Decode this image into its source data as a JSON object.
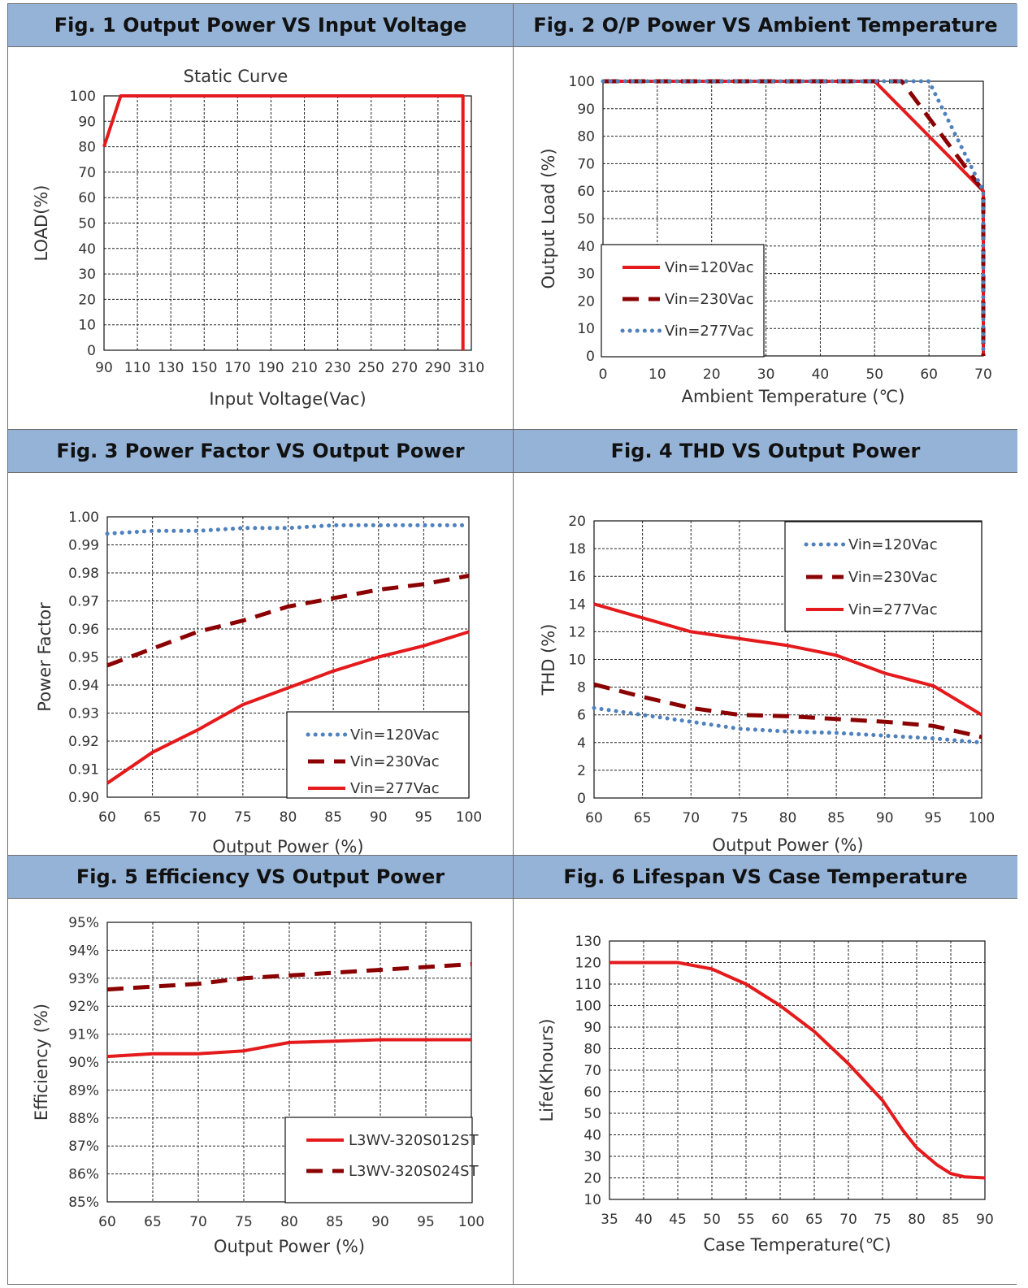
{
  "colors": {
    "header_bg": "#95b3d7",
    "red": "#e41a1c",
    "dark_red": "#8b0000",
    "blue": "#4f81bd"
  },
  "charts": [
    {
      "heading": "Fig. 1 Output Power VS Input Voltage",
      "chart_data": {
        "type": "line",
        "title": "Static Curve",
        "xlabel": "Input Voltage(Vac)",
        "ylabel": "LOAD(%)",
        "xlim": [
          90,
          310
        ],
        "ylim": [
          0,
          100
        ],
        "xticks": [
          90,
          110,
          130,
          150,
          170,
          190,
          210,
          230,
          250,
          270,
          290,
          310
        ],
        "yticks": [
          0,
          10,
          20,
          30,
          40,
          50,
          60,
          70,
          80,
          90,
          100
        ],
        "series": [
          {
            "color": "#e41a1c",
            "style": "solid",
            "points": [
              [
                90,
                80
              ],
              [
                100,
                100
              ],
              [
                305,
                100
              ],
              [
                305,
                0
              ]
            ]
          }
        ]
      }
    },
    {
      "heading": "Fig. 2 O/P Power VS Ambient Temperature",
      "chart_data": {
        "type": "line",
        "title": "",
        "xlabel": "Ambient Temperature (℃)",
        "ylabel": "Output  Load (%)",
        "xlim": [
          0,
          70
        ],
        "ylim": [
          0,
          100
        ],
        "xticks": [
          0,
          10,
          20,
          30,
          40,
          50,
          60,
          70
        ],
        "yticks": [
          0,
          10,
          20,
          30,
          40,
          50,
          60,
          70,
          80,
          90,
          100
        ],
        "legend_position": "bottom-left",
        "series": [
          {
            "name": "Vin=120Vac",
            "color": "#e41a1c",
            "style": "solid",
            "points": [
              [
                0,
                100
              ],
              [
                50,
                100
              ],
              [
                70,
                60
              ],
              [
                70,
                0
              ]
            ]
          },
          {
            "name": "Vin=230Vac",
            "color": "#8b0000",
            "style": "dashed",
            "points": [
              [
                0,
                100
              ],
              [
                55,
                100
              ],
              [
                70,
                60
              ],
              [
                70,
                0
              ]
            ]
          },
          {
            "name": "Vin=277Vac",
            "color": "#4f81bd",
            "style": "dotted",
            "points": [
              [
                0,
                100
              ],
              [
                60,
                100
              ],
              [
                70,
                60
              ],
              [
                70,
                0
              ]
            ]
          }
        ]
      }
    },
    {
      "heading": "Fig. 3 Power Factor VS Output Power",
      "chart_data": {
        "type": "line",
        "title": "",
        "xlabel": "Output Power (%)",
        "ylabel": "Power Factor",
        "xlim": [
          60,
          100
        ],
        "ylim": [
          0.9,
          1.0
        ],
        "xticks": [
          60,
          65,
          70,
          75,
          80,
          85,
          90,
          95,
          100
        ],
        "yticks": [
          "0.90",
          "0.91",
          "0.92",
          "0.93",
          "0.94",
          "0.95",
          "0.96",
          "0.97",
          "0.98",
          "0.99",
          "1.00"
        ],
        "legend_position": "bottom-right",
        "series": [
          {
            "name": "Vin=120Vac",
            "color": "#4f81bd",
            "style": "dotted",
            "points": [
              [
                60,
                0.994
              ],
              [
                65,
                0.995
              ],
              [
                70,
                0.995
              ],
              [
                75,
                0.996
              ],
              [
                80,
                0.996
              ],
              [
                85,
                0.997
              ],
              [
                90,
                0.997
              ],
              [
                95,
                0.997
              ],
              [
                100,
                0.997
              ]
            ]
          },
          {
            "name": "Vin=230Vac",
            "color": "#8b0000",
            "style": "dashed",
            "points": [
              [
                60,
                0.947
              ],
              [
                65,
                0.953
              ],
              [
                70,
                0.959
              ],
              [
                75,
                0.963
              ],
              [
                80,
                0.968
              ],
              [
                85,
                0.971
              ],
              [
                90,
                0.974
              ],
              [
                95,
                0.976
              ],
              [
                100,
                0.979
              ]
            ]
          },
          {
            "name": "Vin=277Vac",
            "color": "#e41a1c",
            "style": "solid",
            "points": [
              [
                60,
                0.905
              ],
              [
                65,
                0.916
              ],
              [
                70,
                0.924
              ],
              [
                75,
                0.933
              ],
              [
                80,
                0.939
              ],
              [
                85,
                0.945
              ],
              [
                90,
                0.95
              ],
              [
                95,
                0.954
              ],
              [
                100,
                0.959
              ]
            ]
          }
        ]
      }
    },
    {
      "heading": "Fig. 4 THD VS Output Power",
      "chart_data": {
        "type": "line",
        "title": "",
        "xlabel": "Output Power (%)",
        "ylabel": "THD (%)",
        "xlim": [
          60,
          100
        ],
        "ylim": [
          0,
          20
        ],
        "xticks": [
          60,
          65,
          70,
          75,
          80,
          85,
          90,
          95,
          100
        ],
        "yticks": [
          0,
          2,
          4,
          6,
          8,
          10,
          12,
          14,
          16,
          18,
          20
        ],
        "legend_position": "top-right",
        "series": [
          {
            "name": "Vin=120Vac",
            "color": "#4f81bd",
            "style": "dotted",
            "points": [
              [
                60,
                6.5
              ],
              [
                65,
                6.0
              ],
              [
                70,
                5.5
              ],
              [
                75,
                5.0
              ],
              [
                80,
                4.8
              ],
              [
                85,
                4.7
              ],
              [
                90,
                4.5
              ],
              [
                95,
                4.3
              ],
              [
                100,
                4.0
              ]
            ]
          },
          {
            "name": "Vin=230Vac",
            "color": "#8b0000",
            "style": "dashed",
            "points": [
              [
                60,
                8.2
              ],
              [
                65,
                7.3
              ],
              [
                70,
                6.5
              ],
              [
                75,
                6.0
              ],
              [
                80,
                5.9
              ],
              [
                85,
                5.7
              ],
              [
                90,
                5.5
              ],
              [
                95,
                5.2
              ],
              [
                100,
                4.4
              ]
            ]
          },
          {
            "name": "Vin=277Vac",
            "color": "#e41a1c",
            "style": "solid",
            "points": [
              [
                60,
                14.0
              ],
              [
                65,
                13.0
              ],
              [
                70,
                12.0
              ],
              [
                75,
                11.5
              ],
              [
                80,
                11.0
              ],
              [
                85,
                10.3
              ],
              [
                90,
                9.0
              ],
              [
                95,
                8.1
              ],
              [
                100,
                6.0
              ]
            ]
          }
        ]
      }
    },
    {
      "heading": "Fig. 5 Efficiency VS Output Power",
      "chart_data": {
        "type": "line",
        "title": "",
        "xlabel": "Output Power (%)",
        "ylabel": "Efficiency (%)",
        "xlim": [
          60,
          100
        ],
        "ylim": [
          85,
          95
        ],
        "xticks": [
          60,
          65,
          70,
          75,
          80,
          85,
          90,
          95,
          100
        ],
        "yticks": [
          "85%",
          "86%",
          "87%",
          "88%",
          "89%",
          "90%",
          "91%",
          "92%",
          "93%",
          "94%",
          "95%"
        ],
        "legend_position": "bottom-right",
        "series": [
          {
            "name": "L3WV-320S012ST",
            "color": "#e41a1c",
            "style": "solid",
            "points": [
              [
                60,
                90.2
              ],
              [
                65,
                90.3
              ],
              [
                70,
                90.3
              ],
              [
                75,
                90.4
              ],
              [
                80,
                90.7
              ],
              [
                85,
                90.75
              ],
              [
                90,
                90.8
              ],
              [
                95,
                90.8
              ],
              [
                100,
                90.8
              ]
            ]
          },
          {
            "name": "L3WV-320S024ST",
            "color": "#8b0000",
            "style": "dashed",
            "points": [
              [
                60,
                92.6
              ],
              [
                65,
                92.7
              ],
              [
                70,
                92.8
              ],
              [
                75,
                93.0
              ],
              [
                80,
                93.1
              ],
              [
                85,
                93.2
              ],
              [
                90,
                93.3
              ],
              [
                95,
                93.4
              ],
              [
                100,
                93.5
              ]
            ]
          }
        ]
      }
    },
    {
      "heading": "Fig. 6 Lifespan VS Case Temperature",
      "chart_data": {
        "type": "line",
        "title": "",
        "xlabel": "Case Temperature(℃)",
        "ylabel": "Life(Khours)",
        "xlim": [
          35,
          90
        ],
        "ylim": [
          10,
          130
        ],
        "xticks": [
          35,
          40,
          45,
          50,
          55,
          60,
          65,
          70,
          75,
          80,
          85,
          90
        ],
        "yticks": [
          10,
          20,
          30,
          40,
          50,
          60,
          70,
          80,
          90,
          100,
          110,
          120,
          130
        ],
        "series": [
          {
            "color": "#e41a1c",
            "style": "solid",
            "points": [
              [
                35,
                120
              ],
              [
                40,
                120
              ],
              [
                45,
                120
              ],
              [
                50,
                117
              ],
              [
                55,
                110
              ],
              [
                60,
                100
              ],
              [
                65,
                88
              ],
              [
                70,
                73
              ],
              [
                75,
                56
              ],
              [
                78,
                42
              ],
              [
                80,
                34
              ],
              [
                83,
                26
              ],
              [
                85,
                22
              ],
              [
                87,
                20.5
              ],
              [
                90,
                20
              ]
            ]
          }
        ]
      }
    }
  ]
}
